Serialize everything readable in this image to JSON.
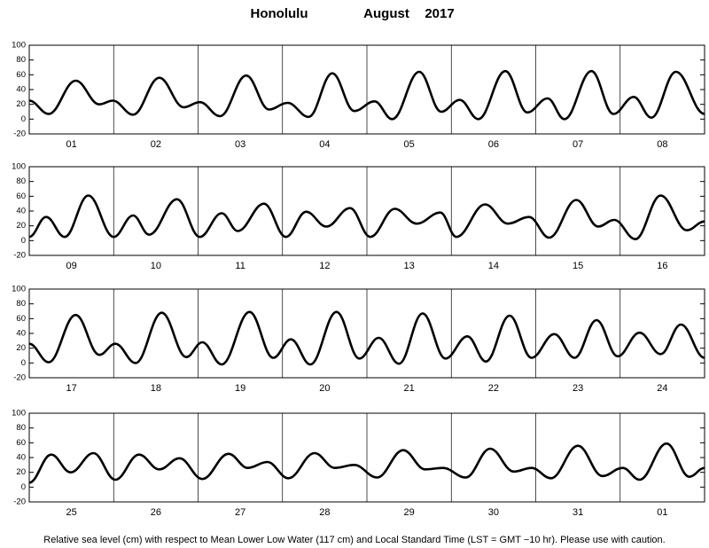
{
  "header": {
    "place": "Honolulu",
    "month": "August",
    "year": "2017"
  },
  "note": "Relative sea level (cm) with respect to Mean Lower Low Water (117 cm) and Local Standard Time (LST = GMT −10 hr). Please use with caution.",
  "chart_data": [
    {
      "type": "line",
      "color": "#000000",
      "categories": [
        "01",
        "02",
        "03",
        "04",
        "05",
        "06",
        "07",
        "08"
      ],
      "xlim": [
        0,
        8
      ],
      "ylim": [
        -20,
        100
      ],
      "yticks": [
        -20,
        0,
        20,
        40,
        60,
        80,
        100
      ],
      "x": [
        0,
        0.23,
        0.55,
        0.83,
        0.99,
        1.23,
        1.54,
        1.83,
        2.02,
        2.26,
        2.57,
        2.84,
        3.06,
        3.31,
        3.59,
        3.85,
        4.09,
        4.3,
        4.62,
        4.88,
        5.1,
        5.32,
        5.64,
        5.9,
        6.14,
        6.34,
        6.66,
        6.92,
        7.16,
        7.37,
        7.66,
        8
      ],
      "values": [
        25,
        7,
        52,
        20,
        25,
        6,
        56,
        16,
        23,
        4,
        59,
        13,
        22,
        3,
        62,
        11,
        24,
        0,
        64,
        10,
        26,
        0,
        65,
        9,
        28,
        0,
        65,
        7,
        30,
        2,
        64,
        7
      ]
    },
    {
      "type": "line",
      "color": "#000000",
      "categories": [
        "09",
        "10",
        "11",
        "12",
        "13",
        "14",
        "15",
        "16"
      ],
      "xlim": [
        0,
        8
      ],
      "ylim": [
        -20,
        100
      ],
      "yticks": [
        -20,
        0,
        20,
        40,
        60,
        80,
        100
      ],
      "x": [
        0,
        0.2,
        0.42,
        0.7,
        1,
        1.23,
        1.42,
        1.75,
        2.02,
        2.28,
        2.47,
        2.78,
        3.04,
        3.28,
        3.52,
        3.8,
        4.04,
        4.33,
        4.59,
        4.87,
        5.06,
        5.4,
        5.67,
        5.92,
        6.16,
        6.48,
        6.74,
        6.93,
        7.18,
        7.48,
        7.79,
        8
      ],
      "values": [
        5,
        32,
        5,
        61,
        5,
        34,
        8,
        56,
        5,
        37,
        13,
        50,
        5,
        39,
        19,
        44,
        5,
        43,
        23,
        38,
        5,
        49,
        23,
        32,
        4,
        55,
        19,
        28,
        2,
        61,
        14,
        26
      ]
    },
    {
      "type": "line",
      "color": "#000000",
      "categories": [
        "17",
        "18",
        "19",
        "20",
        "21",
        "22",
        "23",
        "24"
      ],
      "xlim": [
        0,
        8
      ],
      "ylim": [
        -20,
        100
      ],
      "yticks": [
        -20,
        0,
        20,
        40,
        60,
        80,
        100
      ],
      "x": [
        0,
        0.23,
        0.55,
        0.83,
        1.02,
        1.26,
        1.57,
        1.86,
        2.05,
        2.28,
        2.61,
        2.89,
        3.1,
        3.33,
        3.64,
        3.91,
        4.14,
        4.38,
        4.66,
        4.93,
        5.19,
        5.41,
        5.69,
        5.95,
        6.22,
        6.46,
        6.72,
        6.97,
        7.23,
        7.48,
        7.72,
        8
      ],
      "values": [
        26,
        1,
        65,
        11,
        26,
        0,
        68,
        8,
        28,
        -2,
        69,
        7,
        32,
        -2,
        69,
        6,
        34,
        -1,
        67,
        6,
        36,
        2,
        64,
        7,
        39,
        7,
        58,
        9,
        41,
        12,
        52,
        7
      ]
    },
    {
      "type": "line",
      "color": "#000000",
      "categories": [
        "25",
        "26",
        "27",
        "28",
        "29",
        "30",
        "31",
        "01"
      ],
      "xlim": [
        0,
        8
      ],
      "ylim": [
        -20,
        100
      ],
      "yticks": [
        -20,
        0,
        20,
        40,
        60,
        80,
        100
      ],
      "x": [
        0,
        0.26,
        0.49,
        0.76,
        1.02,
        1.3,
        1.54,
        1.78,
        2.05,
        2.36,
        2.59,
        2.82,
        3.07,
        3.38,
        3.62,
        3.85,
        4.12,
        4.43,
        4.69,
        4.9,
        5.17,
        5.46,
        5.74,
        5.95,
        6.18,
        6.5,
        6.79,
        7.03,
        7.23,
        7.55,
        7.82,
        8
      ],
      "values": [
        6,
        44,
        20,
        46,
        10,
        44,
        24,
        39,
        11,
        45,
        26,
        34,
        12,
        46,
        26,
        30,
        13,
        50,
        24,
        26,
        13,
        52,
        21,
        26,
        12,
        56,
        15,
        26,
        10,
        59,
        14,
        26
      ]
    }
  ]
}
